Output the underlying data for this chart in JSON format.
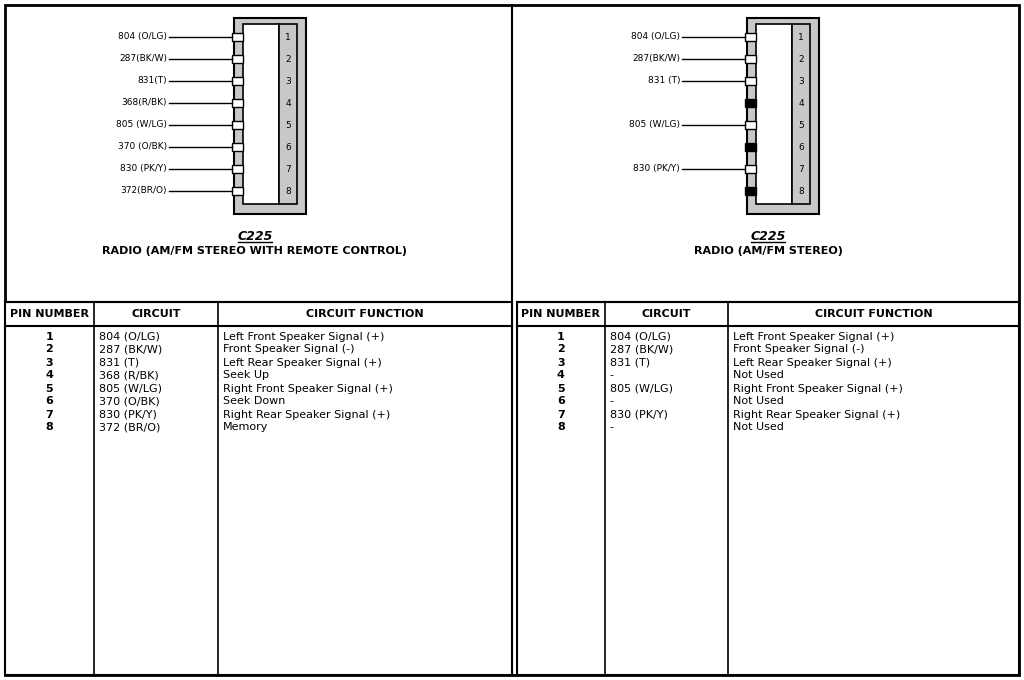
{
  "bg_color": "#ffffff",
  "left_panel": {
    "connector_label": "C225",
    "title": "RADIO (AM/FM STEREO WITH REMOTE CONTROL)",
    "wire_labels": [
      "804 (O/LG)",
      "287(BK/W)",
      "831(T)",
      "368(R/BK)",
      "805 (W/LG)",
      "370 (O/BK)",
      "830 (PK/Y)",
      "372(BR/O)"
    ],
    "pin_numbers": [
      "1",
      "2",
      "3",
      "4",
      "5",
      "6",
      "7",
      "8"
    ],
    "pin_filled": [
      false,
      false,
      false,
      false,
      false,
      false,
      false,
      false
    ],
    "table_headers": [
      "PIN NUMBER",
      "CIRCUIT",
      "CIRCUIT FUNCTION"
    ],
    "table_pins": [
      "1",
      "2",
      "3",
      "4",
      "5",
      "6",
      "7",
      "8"
    ],
    "table_circuits": [
      "804 (O/LG)",
      "287 (BK/W)",
      "831 (T)",
      "368 (R/BK)",
      "805 (W/LG)",
      "370 (O/BK)",
      "830 (PK/Y)",
      "372 (BR/O)"
    ],
    "table_functions": [
      "Left Front Speaker Signal (+)",
      "Front Speaker Signal (-)",
      "Left Rear Speaker Signal (+)",
      "Seek Up",
      "Right Front Speaker Signal (+)",
      "Seek Down",
      "Right Rear Speaker Signal (+)",
      "Memory"
    ]
  },
  "right_panel": {
    "connector_label": "C225",
    "title": "RADIO (AM/FM STEREO)",
    "wire_labels": [
      "804 (O/LG)",
      "287(BK/W)",
      "831 (T)",
      "",
      "805 (W/LG)",
      "",
      "830 (PK/Y)",
      ""
    ],
    "pin_numbers": [
      "1",
      "2",
      "3",
      "4",
      "5",
      "6",
      "7",
      "8"
    ],
    "pin_filled": [
      false,
      false,
      false,
      true,
      false,
      true,
      false,
      true
    ],
    "table_headers": [
      "PIN NUMBER",
      "CIRCUIT",
      "CIRCUIT FUNCTION"
    ],
    "table_pins": [
      "1",
      "2",
      "3",
      "4",
      "5",
      "6",
      "7",
      "8"
    ],
    "table_circuits": [
      "804 (O/LG)",
      "287 (BK/W)",
      "831 (T)",
      "-",
      "805 (W/LG)",
      "-",
      "830 (PK/Y)",
      "-"
    ],
    "table_functions": [
      "Left Front Speaker Signal (+)",
      "Front Speaker Signal (-)",
      "Left Rear Speaker Signal (+)",
      "Not Used",
      "Right Front Speaker Signal (+)",
      "Not Used",
      "Right Rear Speaker Signal (+)",
      "Not Used"
    ]
  }
}
